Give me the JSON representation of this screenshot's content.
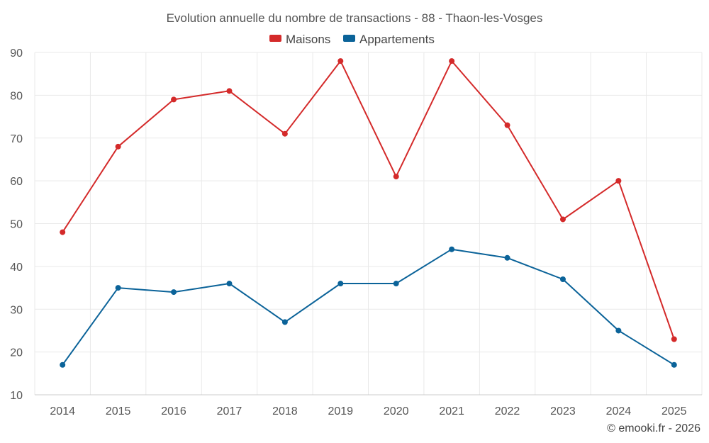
{
  "chart_data": {
    "type": "line",
    "title": "Evolution annuelle du nombre de transactions - 88 - Thaon-les-Vosges",
    "categories": [
      "2014",
      "2015",
      "2016",
      "2017",
      "2018",
      "2019",
      "2020",
      "2021",
      "2022",
      "2023",
      "2024",
      "2025"
    ],
    "series": [
      {
        "name": "Maisons",
        "color": "#d42a2a",
        "values": [
          48,
          68,
          79,
          81,
          71,
          88,
          61,
          88,
          73,
          51,
          60,
          23
        ]
      },
      {
        "name": "Appartements",
        "color": "#0b6399",
        "values": [
          17,
          35,
          34,
          36,
          27,
          36,
          36,
          44,
          42,
          37,
          25,
          17
        ]
      }
    ],
    "ylim": [
      10,
      90
    ],
    "yticks": [
      10,
      20,
      30,
      40,
      50,
      60,
      70,
      80,
      90
    ],
    "xlabel": "",
    "ylabel": "",
    "grid": true,
    "legend_position": "top-center"
  },
  "credit": "© emooki.fr - 2026"
}
